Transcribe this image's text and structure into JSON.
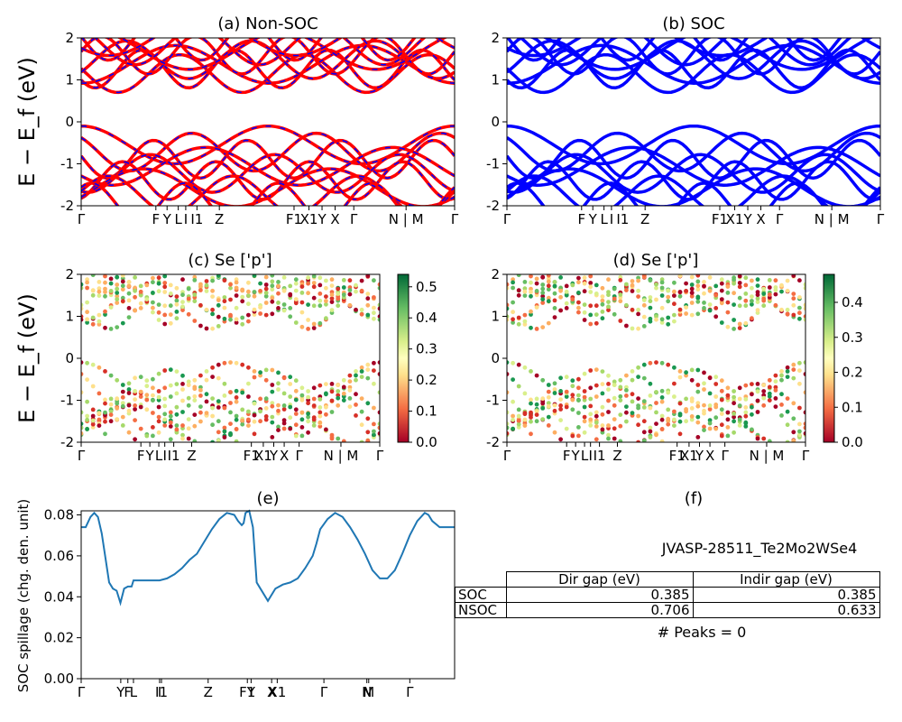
{
  "chart_data": [
    {
      "panel": "a",
      "type": "line",
      "title": "(a) Non-SOC",
      "ylabel": "E − E_f (eV)",
      "ylim": [
        -2,
        2
      ],
      "yticks": [
        -2,
        -1,
        0,
        1,
        2
      ],
      "series_colors": [
        "#ff0000",
        "#0000ff"
      ],
      "kpoint_labels": [
        "Γ",
        "F",
        "Y",
        "L",
        "I",
        "I1",
        "Z",
        "F1",
        "X1",
        "Y",
        "X",
        "Γ",
        "N | M",
        "Γ"
      ],
      "kpoint_positions": [
        0,
        0.2,
        0.23,
        0.26,
        0.28,
        0.31,
        0.37,
        0.57,
        0.61,
        0.645,
        0.68,
        0.73,
        0.87,
        1.0
      ]
    },
    {
      "panel": "b",
      "type": "line",
      "title": "(b) SOC",
      "ylim": [
        -2,
        2
      ],
      "yticks": [
        -2,
        -1,
        0,
        1,
        2
      ],
      "series_colors": [
        "#0000ff"
      ],
      "kpoint_labels": [
        "Γ",
        "F",
        "Y",
        "L",
        "I",
        "I1",
        "Z",
        "F1",
        "X1",
        "Y",
        "X",
        "Γ",
        "N | M",
        "Γ"
      ],
      "kpoint_positions": [
        0,
        0.2,
        0.23,
        0.26,
        0.28,
        0.31,
        0.37,
        0.57,
        0.61,
        0.645,
        0.68,
        0.73,
        0.87,
        1.0
      ]
    },
    {
      "panel": "c",
      "type": "scatter",
      "title": "(c)  Se ['p']",
      "ylabel": "E − E_f (eV)",
      "ylim": [
        -2,
        2
      ],
      "yticks": [
        -2,
        -1,
        0,
        1,
        2
      ],
      "colorbar": {
        "min": 0.0,
        "max": 0.54,
        "ticks": [
          "0.0",
          "0.1",
          "0.2",
          "0.3",
          "0.4",
          "0.5"
        ],
        "cmap": "RdYlGn"
      },
      "kpoint_labels": [
        "Γ",
        "F",
        "Y",
        "L",
        "I",
        "I1",
        "Z",
        "F1",
        "X1",
        "Y",
        "X",
        "Γ",
        "N | M",
        "Γ"
      ],
      "kpoint_positions": [
        0,
        0.2,
        0.23,
        0.26,
        0.28,
        0.31,
        0.37,
        0.57,
        0.61,
        0.645,
        0.68,
        0.73,
        0.87,
        1.0
      ]
    },
    {
      "panel": "d",
      "type": "scatter",
      "title": "(d) Se ['p']",
      "ylim": [
        -2,
        2
      ],
      "yticks": [
        -2,
        -1,
        0,
        1,
        2
      ],
      "colorbar": {
        "min": 0.0,
        "max": 0.48,
        "ticks": [
          "0.0",
          "0.1",
          "0.2",
          "0.3",
          "0.4"
        ],
        "cmap": "RdYlGn"
      },
      "kpoint_labels": [
        "Γ",
        "F",
        "Y",
        "L",
        "I",
        "I1",
        "Z",
        "F1",
        "X1",
        "Y",
        "X",
        "Γ",
        "N | M",
        "Γ"
      ],
      "kpoint_positions": [
        0,
        0.2,
        0.23,
        0.26,
        0.28,
        0.31,
        0.37,
        0.57,
        0.61,
        0.645,
        0.68,
        0.73,
        0.87,
        1.0
      ]
    },
    {
      "panel": "e",
      "type": "line",
      "title": "(e)",
      "ylabel": "SOC spillage (chg. den. unit)",
      "ylim": [
        0.0,
        0.082
      ],
      "yticks": [
        "0.00",
        "0.02",
        "0.04",
        "0.06",
        "0.08"
      ],
      "color": "#1f77b4",
      "kpoint_labels": [
        "Γ",
        "Y",
        "F",
        "L",
        "I",
        "I1",
        "Z",
        "F1",
        "Y",
        "X",
        "X1",
        "Γ",
        "N",
        "M",
        "Γ"
      ],
      "kpoint_positions": [
        0,
        0.106,
        0.125,
        0.14,
        0.21,
        0.215,
        0.34,
        0.445,
        0.455,
        0.51,
        0.525,
        0.65,
        0.765,
        0.77,
        0.88
      ],
      "x": [
        0,
        0.012,
        0.025,
        0.035,
        0.045,
        0.055,
        0.065,
        0.075,
        0.085,
        0.095,
        0.105,
        0.115,
        0.125,
        0.135,
        0.14,
        0.15,
        0.17,
        0.19,
        0.21,
        0.23,
        0.25,
        0.27,
        0.29,
        0.31,
        0.33,
        0.35,
        0.37,
        0.39,
        0.41,
        0.42,
        0.43,
        0.435,
        0.44,
        0.45,
        0.46,
        0.47,
        0.48,
        0.5,
        0.52,
        0.54,
        0.56,
        0.58,
        0.6,
        0.62,
        0.63,
        0.64,
        0.66,
        0.68,
        0.7,
        0.72,
        0.74,
        0.76,
        0.78,
        0.8,
        0.82,
        0.84,
        0.86,
        0.88,
        0.9,
        0.92,
        0.93,
        0.94,
        0.96,
        0.98,
        1.0
      ],
      "y": [
        0.074,
        0.074,
        0.079,
        0.081,
        0.079,
        0.071,
        0.059,
        0.047,
        0.044,
        0.043,
        0.037,
        0.044,
        0.045,
        0.045,
        0.048,
        0.048,
        0.048,
        0.048,
        0.048,
        0.049,
        0.051,
        0.054,
        0.058,
        0.061,
        0.067,
        0.073,
        0.078,
        0.081,
        0.08,
        0.077,
        0.075,
        0.076,
        0.081,
        0.082,
        0.074,
        0.047,
        0.044,
        0.038,
        0.044,
        0.046,
        0.047,
        0.049,
        0.054,
        0.06,
        0.066,
        0.073,
        0.078,
        0.081,
        0.079,
        0.074,
        0.068,
        0.061,
        0.053,
        0.049,
        0.049,
        0.053,
        0.061,
        0.07,
        0.077,
        0.081,
        0.08,
        0.077,
        0.074,
        0.074,
        0.074
      ]
    },
    {
      "panel": "f",
      "type": "table",
      "title": "(f)",
      "material": "JVASP-28511_Te2Mo2WSe4",
      "columns": [
        "",
        "Dir gap (eV)",
        "Indir gap (eV)"
      ],
      "rows": [
        [
          "SOC",
          "0.385",
          "0.385"
        ],
        [
          "NSOC",
          "0.706",
          "0.633"
        ]
      ],
      "peaks": "# Peaks = 0"
    }
  ]
}
